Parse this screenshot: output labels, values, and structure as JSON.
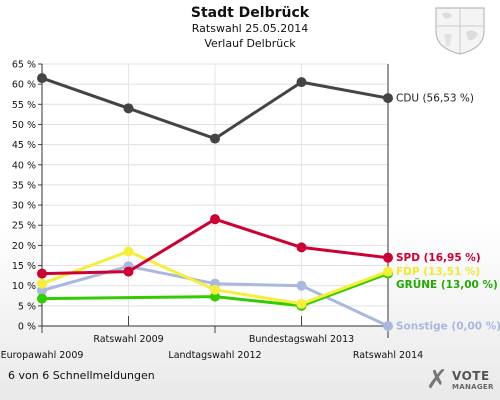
{
  "header": {
    "title": "Stadt Delbrück",
    "subtitle": "Ratswahl 25.05.2014",
    "subtitle2": "Verlauf Delbrück"
  },
  "footer": {
    "text": "6 von 6 Schnellmeldungen",
    "logo_mark": "✗",
    "logo_word1": "VOTE",
    "logo_word2": "MANAGER"
  },
  "chart_data": {
    "type": "line",
    "title": "Verlauf Delbrück",
    "categories": [
      "Europawahl 2009",
      "Ratswahl 2009",
      "Landtagswahl 2012",
      "Bundestagswahl 2013",
      "Ratswahl 2014"
    ],
    "yticks": [
      "0 %",
      "5 %",
      "10 %",
      "15 %",
      "20 %",
      "25 %",
      "30 %",
      "35 %",
      "40 %",
      "45 %",
      "50 %",
      "55 %",
      "60 %",
      "65 %"
    ],
    "ylim": [
      0,
      65
    ],
    "grid": true,
    "series": [
      {
        "name": "CDU",
        "label": "CDU (56,53 %)",
        "color": "#444444",
        "label_color": "#222222",
        "values": [
          61.5,
          54.0,
          46.5,
          60.5,
          56.53
        ]
      },
      {
        "name": "SPD",
        "label": "SPD (16,95 %)",
        "color": "#cc0033",
        "label_color": "#cc0033",
        "values": [
          13.0,
          13.5,
          26.5,
          19.5,
          16.95
        ]
      },
      {
        "name": "FDP",
        "label": "FDP (13,51 %)",
        "color": "#f5ee3a",
        "label_color": "#f0e830",
        "values": [
          10.5,
          18.5,
          9.0,
          5.5,
          13.51
        ]
      },
      {
        "name": "GRÜNE",
        "label": "GRÜNE (13,00 %)",
        "color": "#33cc00",
        "label_color": "#22aa00",
        "values": [
          6.8,
          null,
          7.3,
          5.0,
          13.0
        ]
      },
      {
        "name": "Sonstige",
        "label": "Sonstige (0,00 %)",
        "color": "#aab8e0",
        "label_color": "#aab8e0",
        "values": [
          8.8,
          14.8,
          10.5,
          10.0,
          0.0
        ]
      }
    ]
  }
}
